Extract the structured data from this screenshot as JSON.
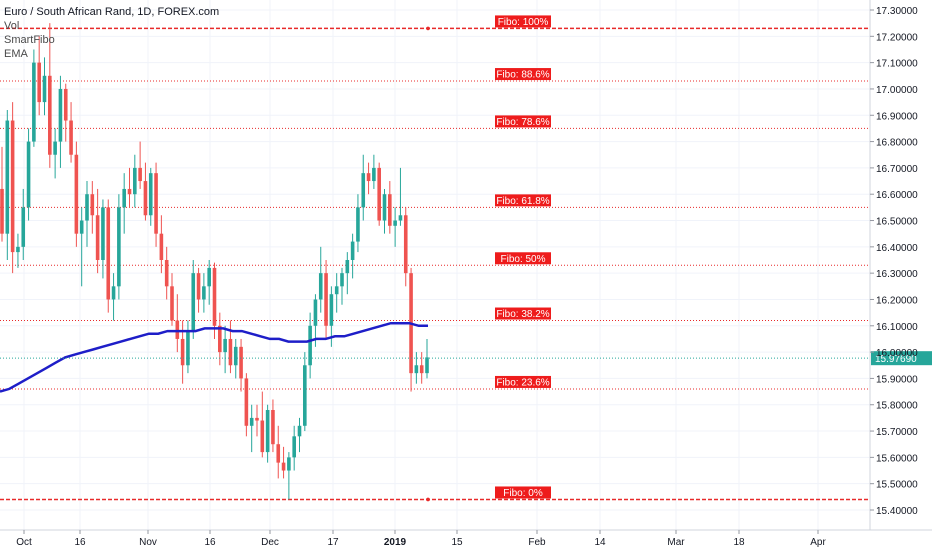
{
  "legend": {
    "title": "Euro / South African Rand, 1D, FOREX.com",
    "indicators": [
      "Vol",
      "SmartFibo",
      "EMA"
    ]
  },
  "chart_data": {
    "type": "candlestick",
    "title": "Euro / South African Rand, 1D, FOREX.com",
    "ylim": [
      15.36,
      17.33
    ],
    "y_ticks": [
      "17.30000",
      "17.20000",
      "17.10000",
      "17.00000",
      "16.90000",
      "16.80000",
      "16.70000",
      "16.60000",
      "16.50000",
      "16.40000",
      "16.30000",
      "16.20000",
      "16.10000",
      "16.00000",
      "15.90000",
      "15.80000",
      "15.70000",
      "15.60000",
      "15.50000",
      "15.40000"
    ],
    "x_ticks": [
      "Oct",
      "16",
      "Nov",
      "16",
      "Dec",
      "17",
      "2019",
      "15",
      "Feb",
      "14",
      "Mar",
      "18",
      "Apr"
    ],
    "last_price": "15.97690",
    "fibo_levels": [
      {
        "label": "Fibo:  100%",
        "value": 17.23
      },
      {
        "label": "Fibo: 88.6%",
        "value": 17.03
      },
      {
        "label": "Fibo: 78.6%",
        "value": 16.85
      },
      {
        "label": "Fibo: 61.8%",
        "value": 16.55
      },
      {
        "label": "Fibo:   50%",
        "value": 16.33
      },
      {
        "label": "Fibo: 38.2%",
        "value": 16.12
      },
      {
        "label": "Fibo: 23.6%",
        "value": 15.86
      },
      {
        "label": "Fibo:    0%",
        "value": 15.44
      }
    ],
    "candles": [
      [
        16.62,
        16.78,
        16.42,
        16.45
      ],
      [
        16.45,
        16.92,
        16.35,
        16.88
      ],
      [
        16.88,
        16.95,
        16.3,
        16.38
      ],
      [
        16.38,
        16.45,
        16.32,
        16.4
      ],
      [
        16.4,
        16.62,
        16.35,
        16.55
      ],
      [
        16.55,
        16.85,
        16.5,
        16.8
      ],
      [
        16.8,
        17.15,
        16.78,
        17.1
      ],
      [
        17.1,
        17.2,
        16.9,
        16.95
      ],
      [
        16.95,
        17.12,
        16.9,
        17.05
      ],
      [
        17.05,
        17.25,
        16.7,
        16.75
      ],
      [
        16.75,
        16.85,
        16.66,
        16.8
      ],
      [
        16.8,
        17.05,
        16.7,
        17.0
      ],
      [
        17.0,
        17.02,
        16.8,
        16.88
      ],
      [
        16.88,
        16.95,
        16.72,
        16.75
      ],
      [
        16.75,
        16.8,
        16.4,
        16.45
      ],
      [
        16.45,
        16.55,
        16.25,
        16.5
      ],
      [
        16.5,
        16.65,
        16.4,
        16.6
      ],
      [
        16.6,
        16.65,
        16.45,
        16.52
      ],
      [
        16.52,
        16.62,
        16.3,
        16.35
      ],
      [
        16.35,
        16.58,
        16.28,
        16.55
      ],
      [
        16.55,
        16.58,
        16.15,
        16.2
      ],
      [
        16.2,
        16.3,
        16.12,
        16.25
      ],
      [
        16.25,
        16.6,
        16.2,
        16.55
      ],
      [
        16.55,
        16.68,
        16.45,
        16.62
      ],
      [
        16.62,
        16.7,
        16.55,
        16.6
      ],
      [
        16.6,
        16.75,
        16.55,
        16.7
      ],
      [
        16.7,
        16.8,
        16.62,
        16.65
      ],
      [
        16.65,
        16.72,
        16.5,
        16.52
      ],
      [
        16.52,
        16.7,
        16.48,
        16.68
      ],
      [
        16.68,
        16.72,
        16.4,
        16.45
      ],
      [
        16.45,
        16.52,
        16.3,
        16.35
      ],
      [
        16.35,
        16.4,
        16.2,
        16.25
      ],
      [
        16.25,
        16.3,
        16.1,
        16.12
      ],
      [
        16.12,
        16.22,
        16.0,
        16.05
      ],
      [
        16.05,
        16.12,
        15.88,
        15.95
      ],
      [
        15.95,
        16.12,
        15.92,
        16.08
      ],
      [
        16.08,
        16.35,
        16.05,
        16.3
      ],
      [
        16.3,
        16.32,
        16.15,
        16.2
      ],
      [
        16.2,
        16.3,
        16.15,
        16.25
      ],
      [
        16.25,
        16.35,
        16.18,
        16.32
      ],
      [
        16.32,
        16.34,
        16.05,
        16.1
      ],
      [
        16.1,
        16.15,
        15.95,
        16.0
      ],
      [
        16.0,
        16.1,
        15.92,
        16.05
      ],
      [
        16.05,
        16.12,
        15.92,
        15.95
      ],
      [
        15.95,
        16.05,
        15.9,
        16.02
      ],
      [
        16.02,
        16.05,
        15.85,
        15.9
      ],
      [
        15.9,
        15.92,
        15.68,
        15.72
      ],
      [
        15.72,
        15.8,
        15.62,
        15.75
      ],
      [
        15.75,
        15.8,
        15.68,
        15.74
      ],
      [
        15.74,
        15.85,
        15.6,
        15.62
      ],
      [
        15.62,
        15.8,
        15.58,
        15.78
      ],
      [
        15.78,
        15.82,
        15.62,
        15.65
      ],
      [
        15.65,
        15.72,
        15.52,
        15.58
      ],
      [
        15.58,
        15.64,
        15.52,
        15.55
      ],
      [
        15.55,
        15.62,
        15.44,
        15.6
      ],
      [
        15.6,
        15.72,
        15.55,
        15.68
      ],
      [
        15.68,
        15.75,
        15.62,
        15.72
      ],
      [
        15.72,
        16.0,
        15.7,
        15.95
      ],
      [
        15.95,
        16.15,
        15.9,
        16.1
      ],
      [
        16.1,
        16.22,
        16.02,
        16.2
      ],
      [
        16.2,
        16.4,
        16.15,
        16.3
      ],
      [
        16.3,
        16.35,
        16.05,
        16.1
      ],
      [
        16.1,
        16.25,
        16.02,
        16.22
      ],
      [
        16.22,
        16.3,
        16.15,
        16.25
      ],
      [
        16.25,
        16.32,
        16.18,
        16.3
      ],
      [
        16.3,
        16.38,
        16.22,
        16.35
      ],
      [
        16.35,
        16.45,
        16.28,
        16.42
      ],
      [
        16.42,
        16.6,
        16.38,
        16.55
      ],
      [
        16.55,
        16.75,
        16.5,
        16.68
      ],
      [
        16.68,
        16.72,
        16.6,
        16.65
      ],
      [
        16.65,
        16.75,
        16.62,
        16.7
      ],
      [
        16.7,
        16.72,
        16.48,
        16.5
      ],
      [
        16.5,
        16.62,
        16.45,
        16.6
      ],
      [
        16.6,
        16.65,
        16.45,
        16.48
      ],
      [
        16.48,
        16.55,
        16.4,
        16.5
      ],
      [
        16.5,
        16.7,
        16.48,
        16.52
      ],
      [
        16.52,
        16.55,
        16.25,
        16.3
      ],
      [
        16.3,
        16.32,
        15.85,
        15.92
      ],
      [
        15.92,
        16.0,
        15.88,
        15.95
      ],
      [
        15.95,
        16.0,
        15.88,
        15.92
      ],
      [
        15.92,
        16.05,
        15.9,
        15.98
      ]
    ],
    "ema": [
      15.85,
      15.86,
      15.88,
      15.9,
      15.92,
      15.94,
      15.96,
      15.98,
      15.99,
      16.0,
      16.01,
      16.02,
      16.03,
      16.04,
      16.05,
      16.06,
      16.07,
      16.07,
      16.08,
      16.08,
      16.08,
      16.08,
      16.09,
      16.09,
      16.09,
      16.08,
      16.08,
      16.07,
      16.06,
      16.05,
      16.05,
      16.04,
      16.04,
      16.04,
      16.05,
      16.05,
      16.06,
      16.06,
      16.07,
      16.08,
      16.09,
      16.1,
      16.11,
      16.11,
      16.11,
      16.1,
      16.1
    ]
  }
}
